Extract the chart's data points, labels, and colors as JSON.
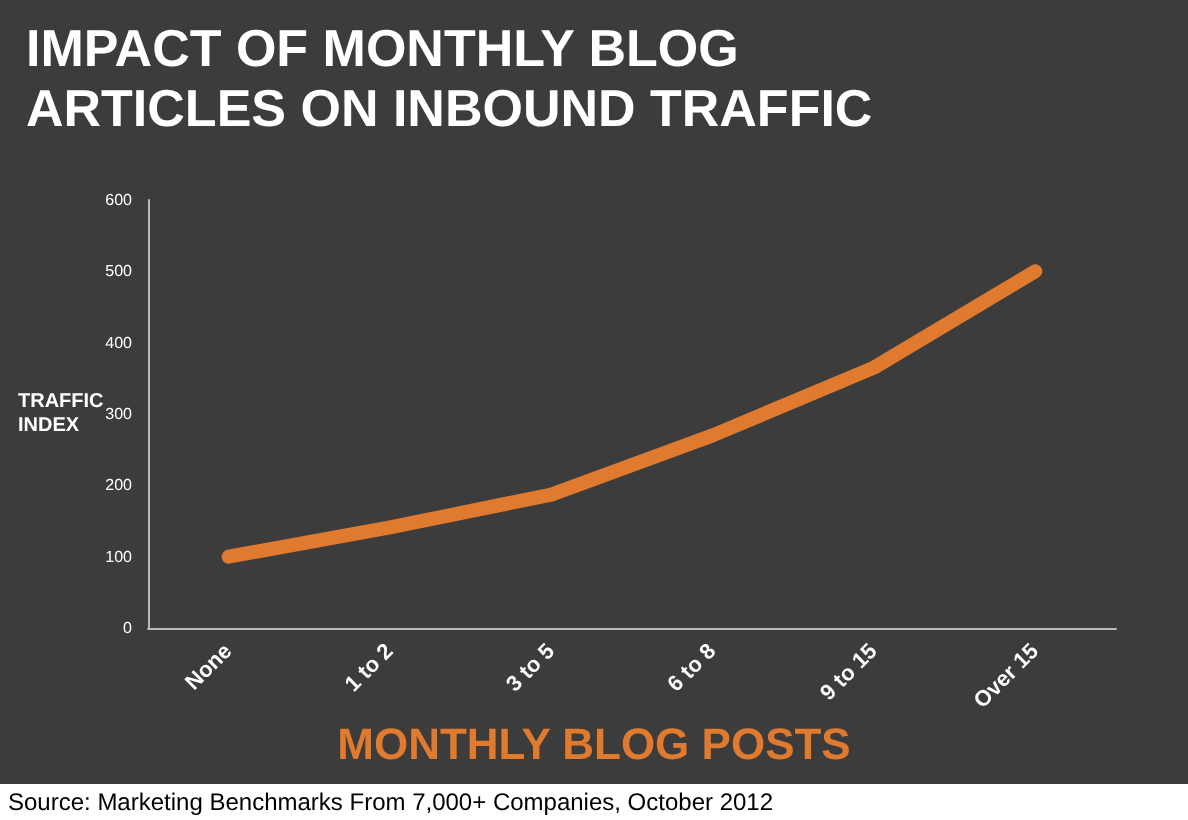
{
  "chart_data": {
    "type": "line",
    "title": "IMPACT OF MONTHLY BLOG ARTICLES ON INBOUND TRAFFIC",
    "xlabel": "MONTHLY BLOG POSTS",
    "ylabel": "TRAFFIC INDEX",
    "categories": [
      "None",
      "1 to 2",
      "3 to 5",
      "6 to 8",
      "9 to 15",
      "Over 15"
    ],
    "series": [
      {
        "color": "#e07a2e",
        "values": [
          100,
          141,
          187,
          270,
          365,
          500
        ]
      }
    ],
    "ylim": [
      0,
      600
    ],
    "yticks": [
      0,
      100,
      200,
      300,
      400,
      500,
      600
    ],
    "marker": "none",
    "line_style": "solid",
    "annotations": [
      "Source: Marketing Benchmarks From 7,000+ Companies, October 2012"
    ]
  }
}
